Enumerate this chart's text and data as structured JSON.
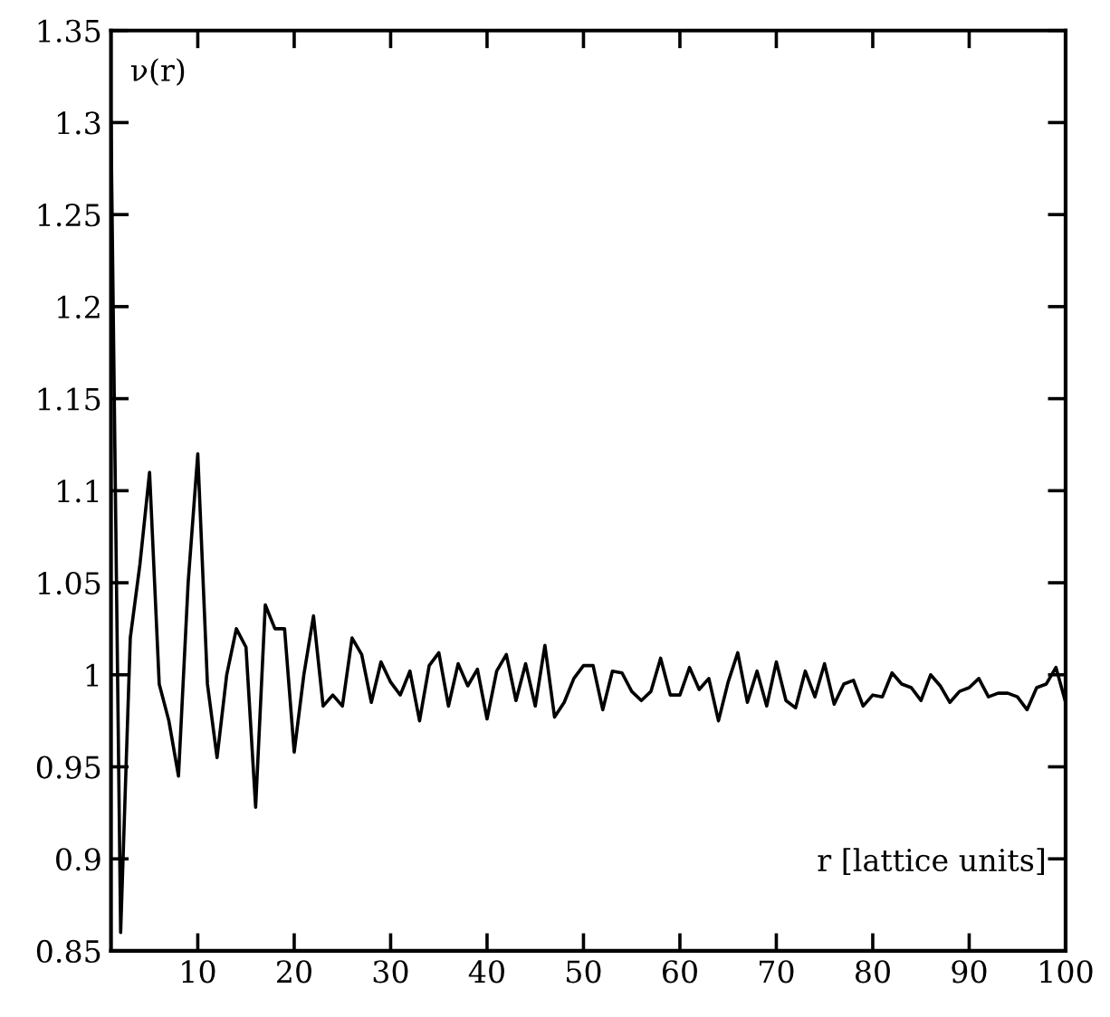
{
  "chart_data": {
    "type": "line",
    "xlabel": "r [lattice units]",
    "ylabel": "ν(r)",
    "x": [
      1,
      2,
      3,
      4,
      5,
      6,
      7,
      8,
      9,
      10,
      11,
      12,
      13,
      14,
      15,
      16,
      17,
      18,
      19,
      20,
      21,
      22,
      23,
      24,
      25,
      26,
      27,
      28,
      29,
      30,
      31,
      32,
      33,
      34,
      35,
      36,
      37,
      38,
      39,
      40,
      41,
      42,
      43,
      44,
      45,
      46,
      47,
      48,
      49,
      50,
      51,
      52,
      53,
      54,
      55,
      56,
      57,
      58,
      59,
      60,
      61,
      62,
      63,
      64,
      65,
      66,
      67,
      68,
      69,
      70,
      71,
      72,
      73,
      74,
      75,
      76,
      77,
      78,
      79,
      80,
      81,
      82,
      83,
      84,
      85,
      86,
      87,
      88,
      89,
      90,
      91,
      92,
      93,
      94,
      95,
      96,
      97,
      98,
      99,
      100
    ],
    "series": [
      {
        "color": "#000000",
        "values": [
          1.3,
          0.86,
          1.02,
          1.06,
          1.11,
          0.995,
          0.975,
          0.945,
          1.05,
          1.12,
          0.995,
          0.955,
          1.0,
          1.025,
          1.015,
          0.928,
          1.038,
          1.025,
          1.025,
          0.958,
          1.0,
          1.032,
          0.983,
          0.989,
          0.983,
          1.02,
          1.011,
          0.985,
          1.007,
          0.996,
          0.989,
          1.002,
          0.975,
          1.005,
          1.012,
          0.983,
          1.006,
          0.994,
          1.003,
          0.976,
          1.002,
          1.011,
          0.986,
          1.006,
          0.983,
          1.016,
          0.977,
          0.985,
          0.998,
          1.005,
          1.005,
          0.981,
          1.002,
          1.001,
          0.991,
          0.986,
          0.991,
          1.009,
          0.989,
          0.989,
          1.004,
          0.992,
          0.998,
          0.975,
          0.996,
          1.012,
          0.985,
          1.002,
          0.983,
          1.007,
          0.986,
          0.982,
          1.002,
          0.988,
          1.006,
          0.984,
          0.995,
          0.997,
          0.983,
          0.989,
          0.988,
          1.001,
          0.995,
          0.993,
          0.986,
          1.0,
          0.994,
          0.985,
          0.991,
          0.993,
          0.998,
          0.988,
          0.99,
          0.99,
          0.988,
          0.981,
          0.993,
          0.995,
          1.004,
          0.985
        ]
      }
    ],
    "xlim": [
      1,
      100
    ],
    "ylim": [
      0.85,
      1.35
    ],
    "xticks": [
      10,
      20,
      30,
      40,
      50,
      60,
      70,
      80,
      90,
      100
    ],
    "yticks": [
      0.85,
      0.9,
      0.95,
      1,
      1.05,
      1.1,
      1.15,
      1.2,
      1.25,
      1.3,
      1.35
    ],
    "grid": false,
    "marker": "none",
    "line_style": "solid"
  }
}
